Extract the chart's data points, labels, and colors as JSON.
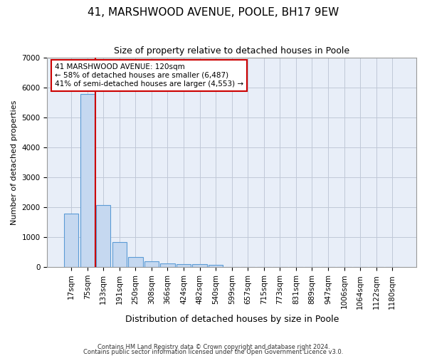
{
  "title": "41, MARSHWOOD AVENUE, POOLE, BH17 9EW",
  "subtitle": "Size of property relative to detached houses in Poole",
  "xlabel": "Distribution of detached houses by size in Poole",
  "ylabel": "Number of detached properties",
  "footnote1": "Contains HM Land Registry data © Crown copyright and database right 2024.",
  "footnote2": "Contains public sector information licensed under the Open Government Licence v3.0.",
  "bar_labels": [
    "17sqm",
    "75sqm",
    "133sqm",
    "191sqm",
    "250sqm",
    "308sqm",
    "366sqm",
    "424sqm",
    "482sqm",
    "540sqm",
    "599sqm",
    "657sqm",
    "715sqm",
    "773sqm",
    "831sqm",
    "889sqm",
    "947sqm",
    "1006sqm",
    "1064sqm",
    "1122sqm",
    "1180sqm"
  ],
  "bar_heights": [
    1780,
    5780,
    2060,
    830,
    340,
    190,
    115,
    105,
    100,
    65,
    0,
    0,
    0,
    0,
    0,
    0,
    0,
    0,
    0,
    0,
    0
  ],
  "bar_color": "#c5d8f0",
  "bar_edge_color": "#5b9bd5",
  "property_line_x": 1.5,
  "property_label": "41 MARSHWOOD AVENUE: 120sqm",
  "smaller_pct": "58%",
  "smaller_count": "6,487",
  "larger_pct": "41%",
  "larger_count": "4,553",
  "ylim": [
    0,
    7000
  ],
  "yticks": [
    0,
    1000,
    2000,
    3000,
    4000,
    5000,
    6000,
    7000
  ],
  "annotation_box_color": "#cc0000",
  "vline_color": "#cc0000",
  "background_color": "#e8eef8",
  "grid_color": "#c0c8d8",
  "title_fontsize": 11,
  "subtitle_fontsize": 9,
  "xlabel_fontsize": 9,
  "ylabel_fontsize": 8,
  "tick_fontsize": 7.5,
  "annot_fontsize": 7.5
}
